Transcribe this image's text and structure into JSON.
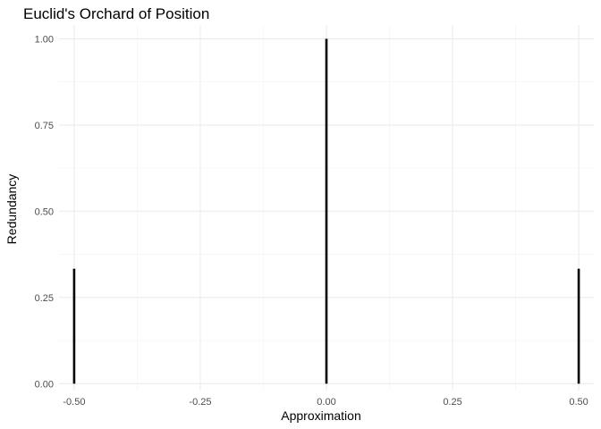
{
  "chart_data": {
    "type": "bar",
    "title": "Euclid's Orchard of Position",
    "xlabel": "Approximation",
    "ylabel": "Redundancy",
    "x": [
      -0.5,
      0.0,
      0.5
    ],
    "values": [
      0.3333,
      1.0,
      0.3333
    ],
    "xlim": [
      -0.53,
      0.53
    ],
    "ylim": [
      -0.02,
      1.04
    ],
    "x_ticks": [
      -0.5,
      -0.25,
      0.0,
      0.25,
      0.5
    ],
    "x_tick_labels": [
      "-0.50",
      "-0.25",
      "0.00",
      "0.25",
      "0.50"
    ],
    "y_ticks": [
      0.0,
      0.25,
      0.5,
      0.75,
      1.0
    ],
    "y_tick_labels": [
      "0.00",
      "0.25",
      "0.50",
      "0.75",
      "1.00"
    ],
    "grid": true,
    "legend": "none",
    "bar_color": "#000000"
  }
}
